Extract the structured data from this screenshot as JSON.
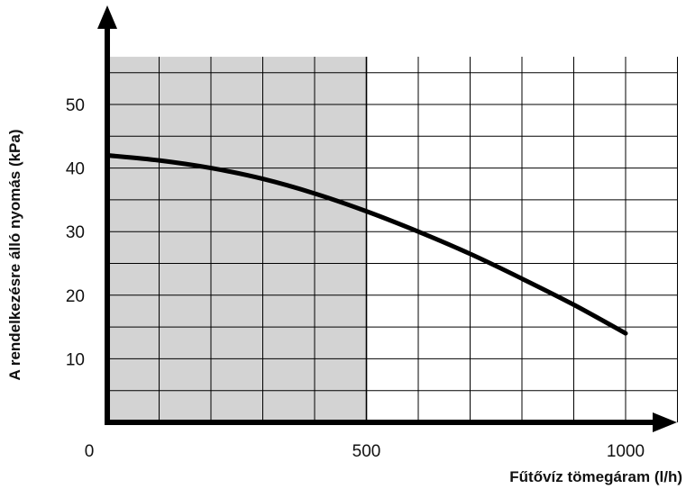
{
  "chart_data": {
    "type": "line",
    "title": "",
    "xlabel": "Fűtővíz tömegáram (l/h)",
    "ylabel": "A rendelkezésre álló nyomás (kPa)",
    "xlim": [
      0,
      1100
    ],
    "ylim": [
      0,
      57.5
    ],
    "x_tick_labels": [
      "0",
      "500",
      "1000"
    ],
    "y_tick_labels": [
      "10",
      "20",
      "30",
      "40",
      "50"
    ],
    "grid": true,
    "shaded_region": {
      "x_from": 0,
      "x_to": 500,
      "color": "#d3d3d3"
    },
    "line_color": "#000000",
    "series": [
      {
        "x": [
          0,
          100,
          200,
          300,
          400,
          500,
          600,
          700,
          800,
          900,
          1000
        ],
        "y": [
          42,
          41.2,
          40,
          38.3,
          36,
          33.2,
          30,
          26.5,
          22.6,
          18.5,
          14
        ]
      }
    ]
  }
}
